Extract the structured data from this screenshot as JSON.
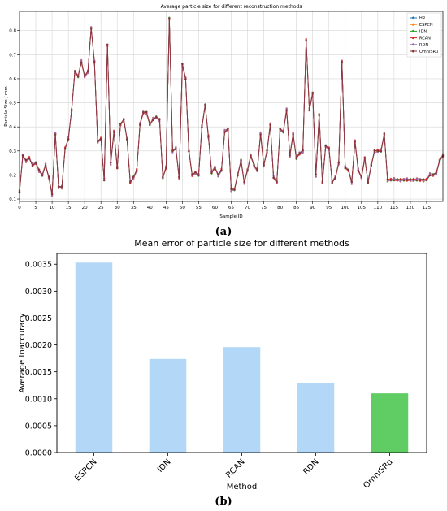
{
  "chart_data": [
    {
      "panel_label": "(a)",
      "type": "line",
      "title": "Average particle size for different reconstruction methods",
      "xlabel": "Sample ID",
      "ylabel": "Particle Size / mm",
      "xlim": [
        0,
        130
      ],
      "ylim": [
        0.09,
        0.88
      ],
      "x_ticks": [
        0,
        5,
        10,
        15,
        20,
        25,
        30,
        35,
        40,
        45,
        50,
        55,
        60,
        65,
        70,
        75,
        80,
        85,
        90,
        95,
        100,
        105,
        110,
        115,
        120,
        125
      ],
      "y_ticks": [
        0.1,
        0.2,
        0.3,
        0.4,
        0.5,
        0.6,
        0.7,
        0.8
      ],
      "grid": true,
      "legend_position": "top-right",
      "series": [
        {
          "name": "HR",
          "color": "#1f77b4",
          "marker": "circle"
        },
        {
          "name": "ESPCN",
          "color": "#ff7f0e",
          "marker": "square"
        },
        {
          "name": "IDN",
          "color": "#2ca02c",
          "marker": "triangle"
        },
        {
          "name": "RCAN",
          "color": "#d62728",
          "marker": "x"
        },
        {
          "name": "RDN",
          "color": "#9467bd",
          "marker": "diamond"
        },
        {
          "name": "OmniSRu",
          "color": "#8c2d2d",
          "marker": "star"
        }
      ],
      "x": [
        0,
        1,
        2,
        3,
        4,
        5,
        6,
        7,
        8,
        9,
        10,
        11,
        12,
        13,
        14,
        15,
        16,
        17,
        18,
        19,
        20,
        21,
        22,
        23,
        24,
        25,
        26,
        27,
        28,
        29,
        30,
        31,
        32,
        33,
        34,
        35,
        36,
        37,
        38,
        39,
        40,
        41,
        42,
        43,
        44,
        45,
        46,
        47,
        48,
        49,
        50,
        51,
        52,
        53,
        54,
        55,
        56,
        57,
        58,
        59,
        60,
        61,
        62,
        63,
        64,
        65,
        66,
        67,
        68,
        69,
        70,
        71,
        72,
        73,
        74,
        75,
        76,
        77,
        78,
        79,
        80,
        81,
        82,
        83,
        84,
        85,
        86,
        87,
        88,
        89,
        90,
        91,
        92,
        93,
        94,
        95,
        96,
        97,
        98,
        99,
        100,
        101,
        102,
        103,
        104,
        105,
        106,
        107,
        108,
        109,
        110,
        111,
        112,
        113,
        114,
        115,
        116,
        117,
        118,
        119,
        120,
        121,
        122,
        123,
        124,
        125,
        126,
        127,
        128,
        129,
        130
      ],
      "y_reference": [
        0.13,
        0.28,
        0.26,
        0.27,
        0.24,
        0.25,
        0.22,
        0.2,
        0.24,
        0.19,
        0.12,
        0.37,
        0.15,
        0.15,
        0.31,
        0.35,
        0.47,
        0.63,
        0.61,
        0.67,
        0.61,
        0.63,
        0.81,
        0.67,
        0.34,
        0.35,
        0.18,
        0.74,
        0.25,
        0.38,
        0.23,
        0.41,
        0.43,
        0.35,
        0.17,
        0.19,
        0.22,
        0.41,
        0.46,
        0.46,
        0.41,
        0.43,
        0.44,
        0.43,
        0.19,
        0.23,
        0.85,
        0.3,
        0.31,
        0.19,
        0.66,
        0.6,
        0.3,
        0.2,
        0.21,
        0.2,
        0.4,
        0.49,
        0.36,
        0.21,
        0.23,
        0.2,
        0.22,
        0.38,
        0.39,
        0.14,
        0.14,
        0.2,
        0.26,
        0.17,
        0.22,
        0.28,
        0.24,
        0.22,
        0.37,
        0.24,
        0.3,
        0.41,
        0.19,
        0.17,
        0.39,
        0.38,
        0.47,
        0.28,
        0.37,
        0.27,
        0.29,
        0.3,
        0.76,
        0.47,
        0.54,
        0.2,
        0.45,
        0.17,
        0.32,
        0.31,
        0.17,
        0.19,
        0.25,
        0.67,
        0.23,
        0.22,
        0.17,
        0.34,
        0.22,
        0.19,
        0.27,
        0.17,
        0.24,
        0.3,
        0.3,
        0.3,
        0.37,
        0.18,
        0.18,
        0.18,
        0.18,
        0.18,
        0.18,
        0.18,
        0.18,
        0.18,
        0.18,
        0.18,
        0.18,
        0.18,
        0.2,
        0.2,
        0.21,
        0.26,
        0.28
      ]
    },
    {
      "panel_label": "(b)",
      "type": "bar",
      "title": "Mean error of particle size for different methods",
      "xlabel": "Method",
      "ylabel": "Average Inaccuracy",
      "categories": [
        "ESPCN",
        "IDN",
        "RCAN",
        "RDN",
        "OmniSRu"
      ],
      "values": [
        0.00353,
        0.00174,
        0.00196,
        0.00129,
        0.0011
      ],
      "bar_colors": [
        "#b3d7f7",
        "#b3d7f7",
        "#b3d7f7",
        "#b3d7f7",
        "#5fcd63"
      ],
      "ylim": [
        0,
        0.0037
      ],
      "y_ticks": [
        "0.0000",
        "0.0005",
        "0.0010",
        "0.0015",
        "0.0020",
        "0.0025",
        "0.0030",
        "0.0035"
      ],
      "grid": false
    }
  ]
}
